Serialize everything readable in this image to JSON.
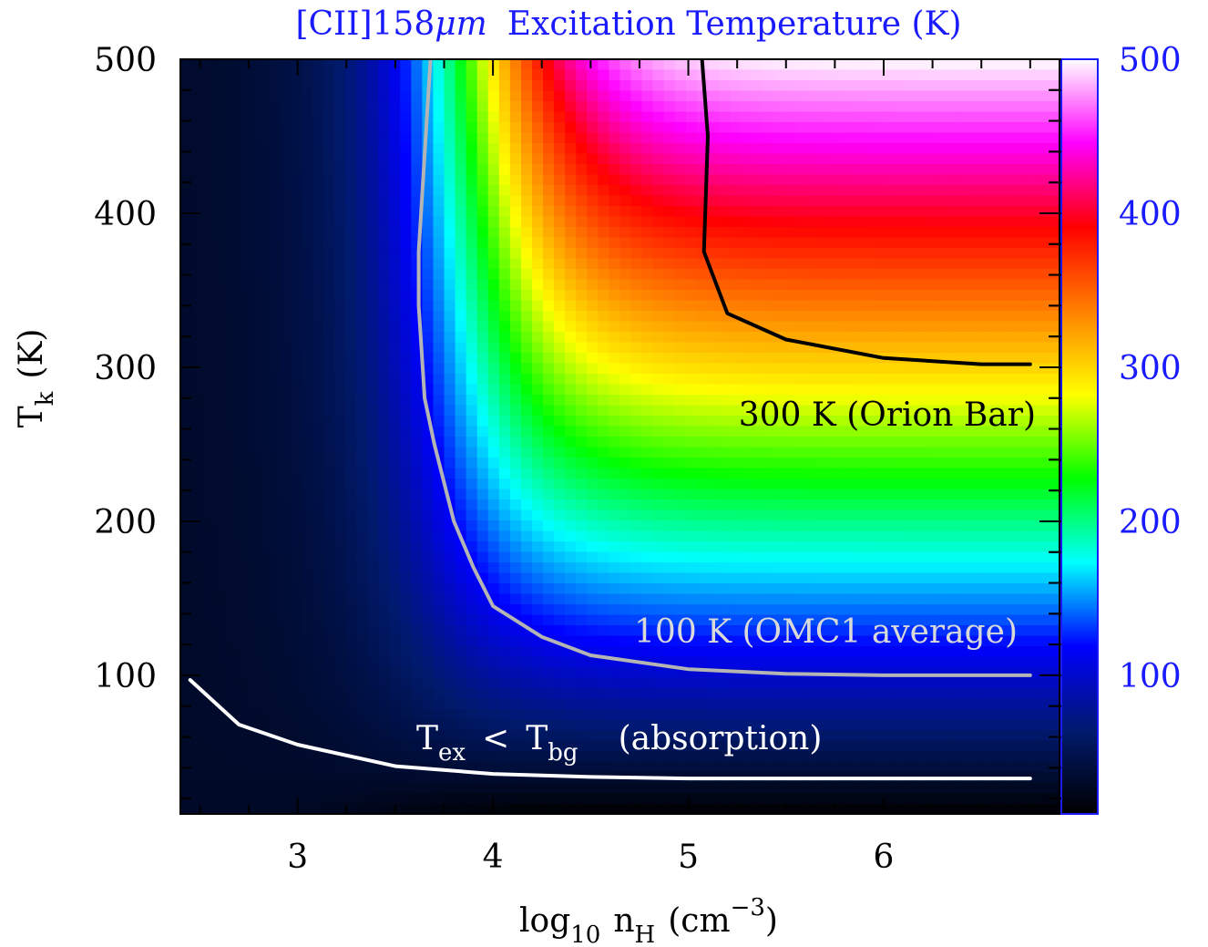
{
  "chart_data": {
    "type": "heatmap",
    "title": "[CII]158μm  Excitation Temperature (K)",
    "xlabel": "log10 nH (cm−3)",
    "ylabel": "Tk (K)",
    "xlim": [
      2.4,
      6.9
    ],
    "ylim": [
      10,
      500
    ],
    "x_ticks": [
      3,
      4,
      5,
      6
    ],
    "y_ticks": [
      100,
      200,
      300,
      400,
      500
    ],
    "colorbar": {
      "range": [
        10,
        500
      ],
      "ticks": [
        100,
        200,
        300,
        400,
        500
      ],
      "colormap": [
        "#000000",
        "#001a6e",
        "#0000ff",
        "#00ffff",
        "#00ff00",
        "#ffff00",
        "#ff8000",
        "#ff0000",
        "#ff00ff",
        "#ffffff"
      ]
    },
    "contours": [
      {
        "level": "300 K",
        "label": "300 K (Orion Bar)",
        "color": "#000000",
        "points": [
          [
            5.07,
            500
          ],
          [
            5.1,
            450
          ],
          [
            5.08,
            375
          ],
          [
            5.2,
            335
          ],
          [
            5.5,
            318
          ],
          [
            6.0,
            306
          ],
          [
            6.5,
            302
          ],
          [
            6.75,
            302
          ]
        ]
      },
      {
        "level": "100 K",
        "label": "100 K (OMC1 average)",
        "color": "#b4b4b4",
        "points": [
          [
            3.68,
            500
          ],
          [
            3.62,
            375
          ],
          [
            3.62,
            340
          ],
          [
            3.65,
            280
          ],
          [
            3.7,
            250
          ],
          [
            3.8,
            200
          ],
          [
            3.9,
            170
          ],
          [
            4.0,
            145
          ],
          [
            4.25,
            125
          ],
          [
            4.5,
            113
          ],
          [
            5.0,
            104
          ],
          [
            5.5,
            101
          ],
          [
            6.0,
            100
          ],
          [
            6.75,
            100
          ]
        ]
      },
      {
        "level": "Tbg",
        "label": "Tex < Tbg  (absorption)",
        "color": "#ffffff",
        "points": [
          [
            2.45,
            97
          ],
          [
            2.7,
            68
          ],
          [
            3.0,
            55
          ],
          [
            3.5,
            41
          ],
          [
            4.0,
            36
          ],
          [
            4.5,
            34
          ],
          [
            5.0,
            33
          ],
          [
            6.0,
            33
          ],
          [
            6.75,
            33
          ]
        ]
      }
    ]
  },
  "labels": {
    "contour_300": "300 K (Orion Bar)",
    "contour_100": "100 K (OMC1 average)",
    "absorption_T1": "T",
    "absorption_sub1": "ex",
    "absorption_lt": "<",
    "absorption_T2": "T",
    "absorption_sub2": "bg",
    "absorption_text": "(absorption)",
    "title_pre": "[CII]158",
    "title_mu": "μm",
    "title_post": "Excitation Temperature (K)",
    "ylabel_T": "T",
    "ylabel_sub": "k",
    "ylabel_unit": "(K)",
    "xlabel_log": "log",
    "xlabel_logsub": "10",
    "xlabel_n": "n",
    "xlabel_nsub": "H",
    "xlabel_unit_open": "(cm",
    "xlabel_exp": "−3",
    "xlabel_unit_close": ")"
  }
}
